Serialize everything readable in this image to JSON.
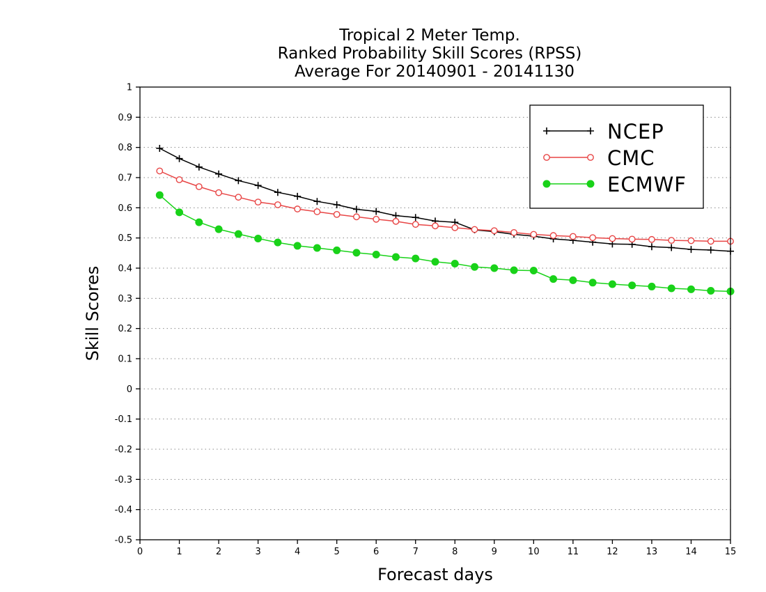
{
  "chart_data": {
    "type": "line",
    "title_lines": [
      "Tropical 2 Meter Temp.",
      "Ranked Probability Skill Scores (RPSS)",
      "Average For 20140901 - 20141130"
    ],
    "xlabel": "Forecast days",
    "ylabel": "Skill Scores",
    "xlim": [
      0,
      15
    ],
    "ylim": [
      -0.5,
      1
    ],
    "x_ticks": [
      0,
      1,
      2,
      3,
      4,
      5,
      6,
      7,
      8,
      9,
      10,
      11,
      12,
      13,
      14,
      15
    ],
    "y_ticks": [
      -0.5,
      -0.4,
      -0.3,
      -0.2,
      -0.1,
      0,
      0.1,
      0.2,
      0.3,
      0.4,
      0.5,
      0.6,
      0.7,
      0.8,
      0.9,
      1
    ],
    "y_tick_labels": [
      "-0.5",
      "-0.4",
      "-0.3",
      "-0.2",
      "-0.1",
      "0",
      "0.1",
      "0.2",
      "0.3",
      "0.4",
      "0.5",
      "0.6",
      "0.7",
      "0.8",
      "0.9",
      "1"
    ],
    "grid": "horizontal dotted",
    "legend_position": "top-right",
    "x": [
      0.5,
      1,
      1.5,
      2,
      2.5,
      3,
      3.5,
      4,
      4.5,
      5,
      5.5,
      6,
      6.5,
      7,
      7.5,
      8,
      8.5,
      9,
      9.5,
      10,
      10.5,
      11,
      11.5,
      12,
      12.5,
      13,
      13.5,
      14,
      14.5,
      15
    ],
    "series": [
      {
        "name": "NCEP",
        "color": "#000000",
        "marker": "plus",
        "values": [
          0.797,
          0.763,
          0.735,
          0.712,
          0.69,
          0.674,
          0.651,
          0.638,
          0.621,
          0.61,
          0.595,
          0.588,
          0.574,
          0.568,
          0.556,
          0.552,
          0.527,
          0.521,
          0.512,
          0.506,
          0.497,
          0.492,
          0.486,
          0.48,
          0.479,
          0.471,
          0.468,
          0.462,
          0.46,
          0.456
        ]
      },
      {
        "name": "CMC",
        "color": "#e84545",
        "marker": "open-circle",
        "values": [
          0.722,
          0.693,
          0.67,
          0.65,
          0.635,
          0.619,
          0.61,
          0.596,
          0.587,
          0.578,
          0.57,
          0.562,
          0.555,
          0.545,
          0.54,
          0.534,
          0.528,
          0.524,
          0.518,
          0.512,
          0.508,
          0.505,
          0.501,
          0.498,
          0.496,
          0.495,
          0.492,
          0.491,
          0.489,
          0.489
        ]
      },
      {
        "name": "ECMWF",
        "color": "#19d219",
        "marker": "filled-circle",
        "values": [
          0.642,
          0.585,
          0.552,
          0.529,
          0.513,
          0.498,
          0.485,
          0.474,
          0.467,
          0.459,
          0.451,
          0.445,
          0.437,
          0.432,
          0.421,
          0.415,
          0.404,
          0.4,
          0.393,
          0.392,
          0.364,
          0.36,
          0.352,
          0.347,
          0.343,
          0.339,
          0.333,
          0.33,
          0.325,
          0.323
        ]
      }
    ]
  }
}
